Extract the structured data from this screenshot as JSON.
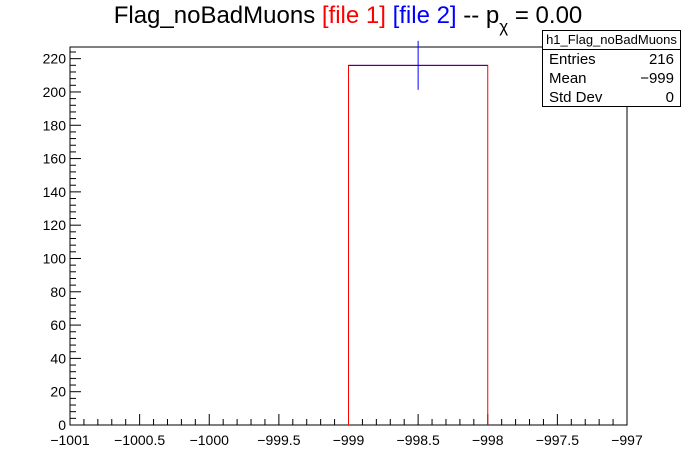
{
  "title": {
    "name": "Flag_noBadMuons",
    "file1": "[file 1]",
    "file2": "[file 2]",
    "sep": "-- p",
    "sub": "χ",
    "value": "= 0.00"
  },
  "stats": {
    "header": "h1_Flag_noBadMuons",
    "rows": [
      {
        "label": "Entries",
        "value": "216"
      },
      {
        "label": "Mean",
        "value": "−999"
      },
      {
        "label": "Std Dev",
        "value": "0"
      }
    ]
  },
  "colors": {
    "file1": "#ff0000",
    "file2": "#0000ff",
    "axis": "#000000"
  },
  "chart_data": {
    "type": "bar",
    "xlim": [
      -1001,
      -997
    ],
    "ylim": [
      0,
      227
    ],
    "x_ticks": [
      "−1001",
      "−1000.5",
      "−1000",
      "−999.5",
      "−999",
      "−998.5",
      "−998",
      "−997.5",
      "−997"
    ],
    "x_tick_values": [
      -1001,
      -1000.5,
      -1000,
      -999.5,
      -999,
      -998.5,
      -998,
      -997.5,
      -997
    ],
    "y_ticks": [
      0,
      20,
      40,
      60,
      80,
      100,
      120,
      140,
      160,
      180,
      200,
      220
    ],
    "series": [
      {
        "name": "file 1",
        "color": "#ff0000",
        "bins": [
          {
            "low": -999,
            "high": -998,
            "value": 216
          }
        ]
      },
      {
        "name": "file 2",
        "color": "#0000ff",
        "bins": [
          {
            "low": -999,
            "high": -998,
            "value": 216,
            "error": 14.7
          }
        ]
      }
    ]
  }
}
